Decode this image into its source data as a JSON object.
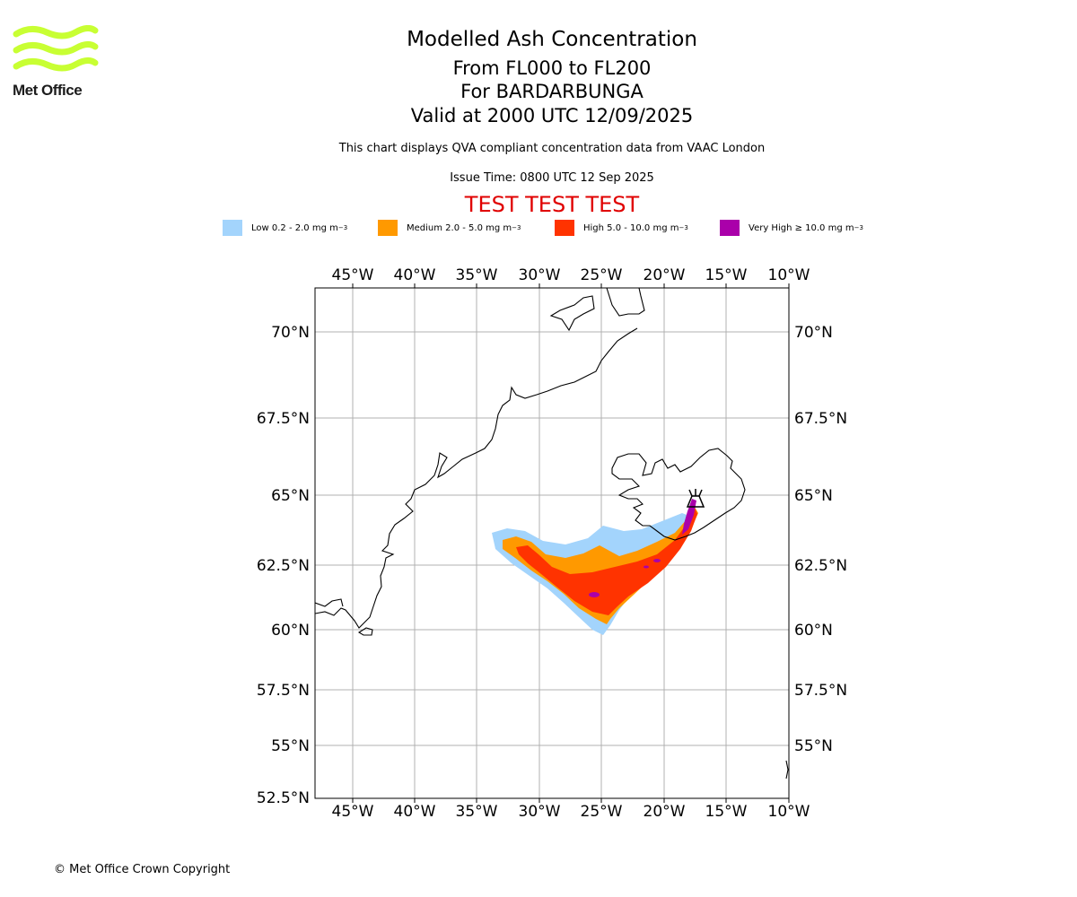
{
  "header": {
    "logo_text": "Met Office",
    "title": "Modelled Ash Concentration",
    "flight_levels": "From FL000 to FL200",
    "volcano": "For BARDARBUNGA",
    "valid": "Valid at 2000 UTC 12/09/2025",
    "description": "This chart displays QVA compliant concentration data from VAAC London",
    "issue_time": "Issue Time: 0800 UTC 12 Sep 2025",
    "test_banner": "TEST TEST TEST"
  },
  "legend": [
    {
      "label": "Low 0.2 - 2.0 mg m",
      "unit_sup": "−3",
      "color": "#a3d4fc"
    },
    {
      "label": "Medium 2.0 - 5.0 mg m",
      "unit_sup": "−3",
      "color": "#ff9900"
    },
    {
      "label": "High 5.0 - 10.0 mg m",
      "unit_sup": "−3",
      "color": "#ff3300"
    },
    {
      "label": "Very High  ≥  10.0 mg m",
      "unit_sup": "−3",
      "color": "#aa00aa"
    }
  ],
  "map": {
    "lon_range": [
      -48,
      -10
    ],
    "lat_range": [
      52.5,
      71.5
    ],
    "lon_ticks": [
      "45°W",
      "40°W",
      "35°W",
      "30°W",
      "25°W",
      "20°W",
      "15°W",
      "10°W"
    ],
    "lat_ticks": [
      "70°N",
      "67.5°N",
      "65°N",
      "62.5°N",
      "60°N",
      "57.5°N",
      "55°N",
      "52.5°N"
    ],
    "grid": true,
    "volcano_marker": {
      "lon": -17.5,
      "lat": 64.6,
      "icon": "volcano-icon"
    }
  },
  "footer": {
    "copyright": "© Met Office Crown Copyright"
  }
}
